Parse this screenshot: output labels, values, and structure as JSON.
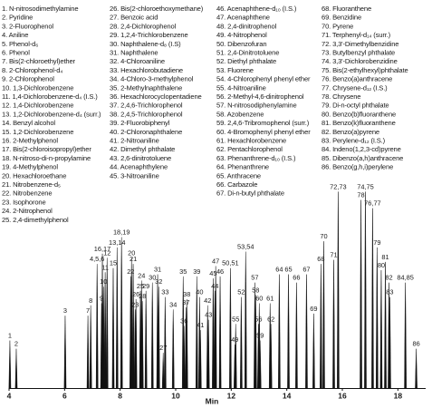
{
  "chart_data": {
    "type": "chromatogram",
    "compound_columns": [
      [
        "1. N-nitrosodimethylamine",
        "2. Pyridine",
        "3. 2-Fluorophenol",
        "4. Aniline",
        "5. Phenol-d₆",
        "6. Phenol",
        "7. Bis(2-chloroethyl)ether",
        "8. 2-Chlorophenol-d₄",
        "9. 2-Chlorophenol",
        "10. 1,3-Dichlorobenzene",
        "11. 1,4-Dichlorobenzene-d₄ (I.S.)",
        "12. 1,4-Dichlorobenzene",
        "13. 1,2-Dichlorobenzene-d₄ (surr.)",
        "14. Benzyl alcohol",
        "15. 1,2-Dichlorobenzene",
        "16. 2-Methylphenol",
        "17. Bis(2-chloroisopropyl)ether",
        "18. N-nitroso-di-n-propylamine",
        "19. 4-Methylphenol",
        "20. Hexachloroethane",
        "21. Nitrobenzene-d₅",
        "22. Nitrobenzene",
        "23. Isophorone",
        "24. 2-Nitrophenol",
        "25. 2,4-dimethylphenol"
      ],
      [
        "26. Bis(2-chloroethoxymethane)",
        "27. Benzoic acid",
        "28. 2,4-Dichlorophenol",
        "29. 1,2,4-Trichlorobenzene",
        "30. Naphthalene-d₈ (I.S)",
        "31. Naphthalene",
        "32. 4-Chloroaniline",
        "33. Hexachlorobutadiene",
        "34. 4-Chloro-3-methylphenol",
        "35. 2-Methylnaphthalene",
        "36. Hexachlorocyclopentadiene",
        "37. 2,4,6-Trichlorophenol",
        "38. 2,4,5-Trichlorophenol",
        "39. 2-Fluorobiphenyl",
        "40. 2-Chloronaphthalene",
        "41. 2-Nitroaniline",
        "42. Dimethyl phthalate",
        "43. 2,6-dinitrotoluene",
        "44. Acenaphthylene",
        "45. 3-Nitroaniline"
      ],
      [
        "46. Acenaphthene-d₁₀ (I.S.)",
        "47. Acenaphthene",
        "48. 2,4-dinitrophenol",
        "49. 4-Nitrophenol",
        "50. Dibenzofuran",
        "51. 2,4-Dinitrotoluene",
        "52. Diethyl phthalate",
        "53. Fluorene",
        "54. 4-Chlorophenyl phenyl ether",
        "55. 4-Nitroaniline",
        "56. 2-Methyl-4,6-dinitrophenol",
        "57. N-nitrosodiphenylamine",
        "58. Azobenzene",
        "59. 2,4,6-Tribromophenol (surr.)",
        "60. 4-Bromophenyl phenyl ether",
        "61. Hexachlorobenzene",
        "62. Pentachlorophenol",
        "63. Phenanthrene-d₁₀ (I.S.)",
        "64. Phenanthrene",
        "65. Anthracene",
        "66. Carbazole",
        "67. Di-n-butyl phthalate"
      ],
      [
        "68. Fluoranthene",
        "69. Benzidine",
        "70. Pyrene",
        "71. Terphenyl-d₁₄ (surr.)",
        "72. 3,3'-Dimethylbenzidine",
        "73. Butylbenzyl phthalate",
        "74. 3,3'-Dichlorobenzidine",
        "75. Bis(2-ethylhexyl)phthalate",
        "76. Benzo(a)anthracene",
        "77. Chrysene-d₁₂ (I.S.)",
        "78. Chrysene",
        "79. Di-n-octyl phthalate",
        "80. Benzo(b)fluoranthene",
        "81. Benzo(k)fluoranthene",
        "82. Benzo(a)pyrene",
        "83. Perylene-d₁₂ (I.S.)",
        "84. Indeno(1,2,3-cd)pyrene",
        "85. Dibenzo(a,h)anthracene",
        "86. Benzo(g,h,i)perylene"
      ]
    ],
    "peak_labels": [
      "1",
      "2",
      "3",
      "7",
      "8",
      "4,5,6",
      "9",
      "16,17",
      "10",
      "11",
      "12",
      "15",
      "13,14",
      "18,19",
      "22",
      "20",
      "21",
      "23",
      "26",
      "25",
      "24",
      "28",
      "29",
      "30",
      "31",
      "32",
      "27",
      "33",
      "34",
      "35",
      "36",
      "37",
      "38",
      "39",
      "40",
      "41",
      "42",
      "43",
      "45",
      "44",
      "47",
      "46",
      "50,51",
      "49",
      "55",
      "52",
      "53,54",
      "57",
      "58",
      "56",
      "60",
      "59",
      "61",
      "62",
      "64",
      "65",
      "66",
      "67",
      "69",
      "68",
      "70",
      "71",
      "72,73",
      "78",
      "74,75",
      "76,77",
      "79",
      "80",
      "81",
      "82",
      "83",
      "84,85",
      "86"
    ],
    "x": [
      4.03,
      4.26,
      6.02,
      6.84,
      6.94,
      7.17,
      7.33,
      7.36,
      7.4,
      7.46,
      7.53,
      7.75,
      7.89,
      8.05,
      8.38,
      8.41,
      8.47,
      8.54,
      8.57,
      8.73,
      8.77,
      8.8,
      8.93,
      9.16,
      9.35,
      9.39,
      9.55,
      9.62,
      9.91,
      10.27,
      10.3,
      10.37,
      10.4,
      10.76,
      10.86,
      10.89,
      11.15,
      11.18,
      11.35,
      11.41,
      11.44,
      11.6,
      11.97,
      12.13,
      12.16,
      12.36,
      12.52,
      12.85,
      12.88,
      12.98,
      13.01,
      13.04,
      13.4,
      13.43,
      13.73,
      14.06,
      14.35,
      14.71,
      14.97,
      15.23,
      15.33,
      15.69,
      15.85,
      16.67,
      16.83,
      17.09,
      17.25,
      17.4,
      17.55,
      17.68,
      17.71,
      18.27,
      18.66
    ],
    "values": [
      23,
      19,
      35,
      35,
      40,
      60,
      41,
      65,
      49,
      56,
      63,
      58,
      68,
      73,
      54,
      63,
      60,
      38,
      43,
      47,
      52,
      42,
      47,
      51,
      55,
      49,
      17,
      44,
      38,
      54,
      30,
      39,
      43,
      54,
      44,
      28,
      40,
      33,
      53,
      47,
      59,
      54,
      58,
      21,
      31,
      44,
      66,
      51,
      45,
      31,
      41,
      23,
      41,
      31,
      55,
      55,
      51,
      55,
      36,
      60,
      71,
      62,
      95,
      91,
      95,
      87,
      68,
      57,
      61,
      51,
      44,
      51,
      19
    ],
    "color": "#111111",
    "xlim": [
      4,
      19
    ],
    "ylim": [
      0,
      100
    ],
    "xticks": [
      4,
      6,
      8,
      10,
      12,
      14,
      16,
      18
    ],
    "xlabel": "Min"
  }
}
